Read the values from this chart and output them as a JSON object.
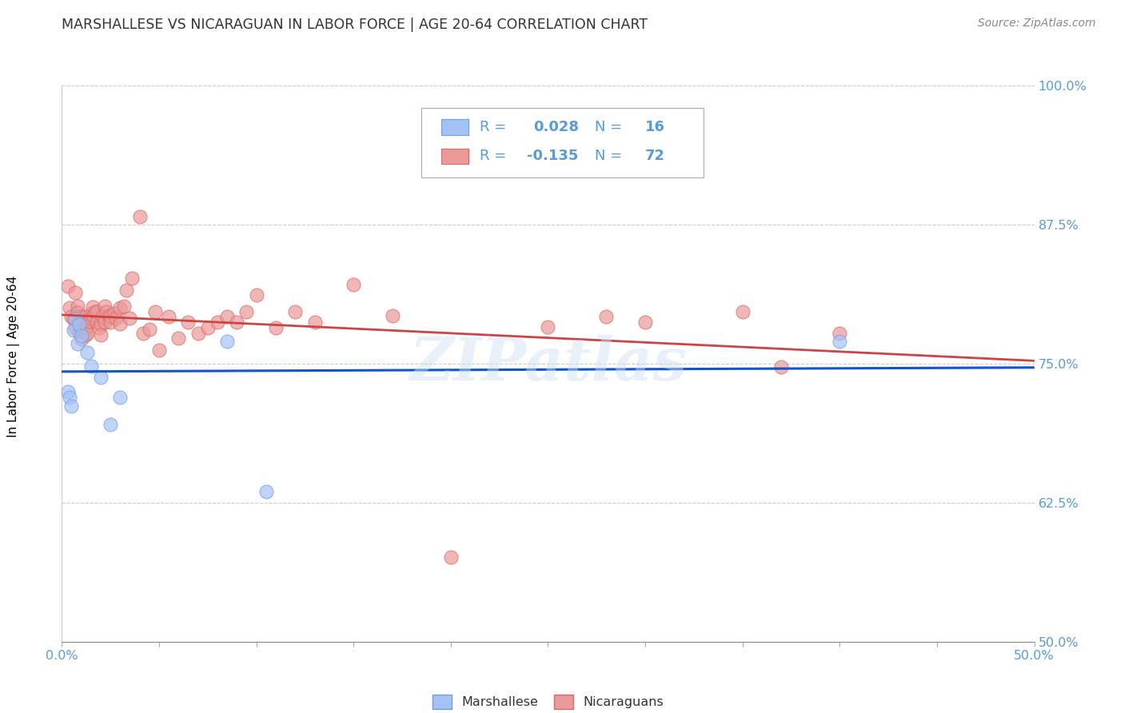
{
  "title": "MARSHALLESE VS NICARAGUAN IN LABOR FORCE | AGE 20-64 CORRELATION CHART",
  "source": "Source: ZipAtlas.com",
  "ylabel": "In Labor Force | Age 20-64",
  "xlim": [
    0.0,
    0.5
  ],
  "ylim": [
    0.5,
    1.0
  ],
  "xtick_positions": [
    0.0,
    0.05,
    0.1,
    0.15,
    0.2,
    0.25,
    0.3,
    0.35,
    0.4,
    0.45,
    0.5
  ],
  "xticklabels": [
    "0.0%",
    "",
    "",
    "",
    "",
    "",
    "",
    "",
    "",
    "",
    "50.0%"
  ],
  "ytick_positions": [
    0.5,
    0.625,
    0.75,
    0.875,
    1.0
  ],
  "yticklabels": [
    "50.0%",
    "62.5%",
    "75.0%",
    "87.5%",
    "100.0%"
  ],
  "tick_color": "#5b9bd5",
  "marshallese_fill": "#a4c2f4",
  "marshallese_edge": "#6d9eeb",
  "nicaraguan_fill": "#ea9999",
  "nicaraguan_edge": "#e06666",
  "trend_blue": "#1155cc",
  "trend_pink": "#cc4444",
  "watermark": "ZIPatlas",
  "r_mar": "0.028",
  "n_mar": "16",
  "r_nic": "-0.135",
  "n_nic": "72",
  "legend_label_marshallese": "Marshallese",
  "legend_label_nicaraguan": "Nicaraguans",
  "text_color": "#5b9bd5",
  "marshallese_x": [
    0.003,
    0.004,
    0.005,
    0.006,
    0.007,
    0.008,
    0.009,
    0.01,
    0.013,
    0.015,
    0.02,
    0.025,
    0.03,
    0.085,
    0.105,
    0.4
  ],
  "marshallese_y": [
    0.725,
    0.72,
    0.712,
    0.78,
    0.79,
    0.768,
    0.785,
    0.775,
    0.76,
    0.748,
    0.738,
    0.695,
    0.72,
    0.77,
    0.635,
    0.77
  ],
  "nicaraguan_x": [
    0.003,
    0.004,
    0.005,
    0.006,
    0.007,
    0.007,
    0.008,
    0.008,
    0.009,
    0.009,
    0.01,
    0.01,
    0.01,
    0.011,
    0.012,
    0.012,
    0.012,
    0.013,
    0.013,
    0.014,
    0.015,
    0.015,
    0.016,
    0.016,
    0.017,
    0.018,
    0.018,
    0.019,
    0.02,
    0.02,
    0.021,
    0.022,
    0.022,
    0.023,
    0.024,
    0.025,
    0.025,
    0.027,
    0.028,
    0.03,
    0.03,
    0.032,
    0.033,
    0.035,
    0.036,
    0.04,
    0.042,
    0.048,
    0.05,
    0.055,
    0.06,
    0.065,
    0.07,
    0.075,
    0.08,
    0.085,
    0.09,
    0.1,
    0.11,
    0.12,
    0.13,
    0.15,
    0.17,
    0.2,
    0.25,
    0.28,
    0.3,
    0.35,
    0.37,
    0.4,
    0.045,
    0.095
  ],
  "nicaraguan_y": [
    0.82,
    0.8,
    0.792,
    0.79,
    0.814,
    0.782,
    0.802,
    0.796,
    0.788,
    0.778,
    0.792,
    0.781,
    0.772,
    0.787,
    0.792,
    0.782,
    0.776,
    0.783,
    0.777,
    0.788,
    0.795,
    0.791,
    0.801,
    0.793,
    0.797,
    0.797,
    0.787,
    0.782,
    0.786,
    0.776,
    0.792,
    0.802,
    0.787,
    0.797,
    0.793,
    0.792,
    0.787,
    0.795,
    0.791,
    0.8,
    0.786,
    0.802,
    0.816,
    0.791,
    0.827,
    0.882,
    0.777,
    0.797,
    0.762,
    0.792,
    0.773,
    0.787,
    0.777,
    0.782,
    0.787,
    0.792,
    0.787,
    0.812,
    0.782,
    0.797,
    0.787,
    0.821,
    0.793,
    0.576,
    0.783,
    0.792,
    0.787,
    0.797,
    0.747,
    0.777,
    0.781,
    0.797
  ]
}
